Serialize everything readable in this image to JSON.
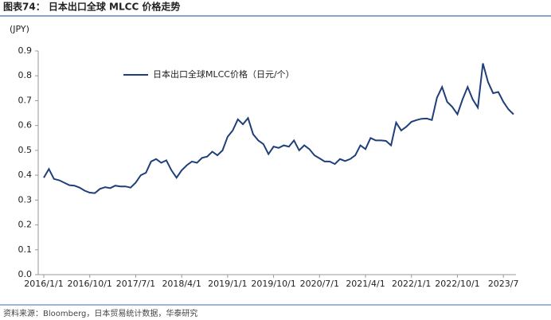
{
  "chart_data": {
    "type": "line",
    "title": "图表74： 日本出口全球 MLCC 价格走势",
    "y_label": "(JPY)",
    "source": "资料来源：Bloomberg，日本贸易统计数据，华泰研究",
    "categories": [
      "2016/1/1",
      null,
      null,
      null,
      null,
      null,
      null,
      null,
      null,
      "2016/10/1",
      null,
      null,
      null,
      null,
      null,
      null,
      null,
      null,
      "2017/7/1",
      null,
      null,
      null,
      null,
      null,
      null,
      null,
      null,
      "2018/4/1",
      null,
      null,
      null,
      null,
      null,
      null,
      null,
      null,
      "2019/1/1",
      null,
      null,
      null,
      null,
      null,
      null,
      null,
      null,
      "2019/10/1",
      null,
      null,
      null,
      null,
      null,
      null,
      null,
      null,
      "2020/7/1",
      null,
      null,
      null,
      null,
      null,
      null,
      null,
      null,
      "2021/4/1",
      null,
      null,
      null,
      null,
      null,
      null,
      null,
      null,
      "2022/1/1",
      null,
      null,
      null,
      null,
      null,
      null,
      null,
      null,
      "2022/10/1",
      null,
      null,
      null,
      null,
      null,
      null,
      null,
      null,
      "2023/7",
      null,
      null
    ],
    "series": [
      {
        "name": "日本出口全球MLCC价格（日元/个）",
        "color": "#1f3f7a",
        "values": [
          0.39,
          0.425,
          0.385,
          0.38,
          0.37,
          0.36,
          0.358,
          0.35,
          0.338,
          0.33,
          0.328,
          0.345,
          0.352,
          0.348,
          0.358,
          0.355,
          0.355,
          0.35,
          0.37,
          0.4,
          0.41,
          0.455,
          0.465,
          0.45,
          0.46,
          0.42,
          0.39,
          0.42,
          0.44,
          0.455,
          0.45,
          0.47,
          0.475,
          0.495,
          0.48,
          0.5,
          0.555,
          0.58,
          0.625,
          0.605,
          0.63,
          0.565,
          0.54,
          0.525,
          0.485,
          0.515,
          0.51,
          0.52,
          0.515,
          0.54,
          0.5,
          0.52,
          0.505,
          0.48,
          0.468,
          0.455,
          0.455,
          0.445,
          0.465,
          0.457,
          0.465,
          0.48,
          0.52,
          0.505,
          0.55,
          0.54,
          0.54,
          0.538,
          0.52,
          0.612,
          0.58,
          0.595,
          0.615,
          0.622,
          0.627,
          0.628,
          0.622,
          0.712,
          0.755,
          0.695,
          0.675,
          0.645,
          0.705,
          0.755,
          0.705,
          0.672,
          0.85,
          0.775,
          0.73,
          0.735,
          0.695,
          0.665,
          0.645
        ]
      }
    ],
    "ylim": [
      0,
      0.9
    ],
    "yticks": [
      {
        "value": 0,
        "label": "0.0"
      },
      0.1,
      0.2,
      0.3,
      0.4,
      0.5,
      0.6,
      0.7,
      0.8,
      0.9
    ]
  }
}
